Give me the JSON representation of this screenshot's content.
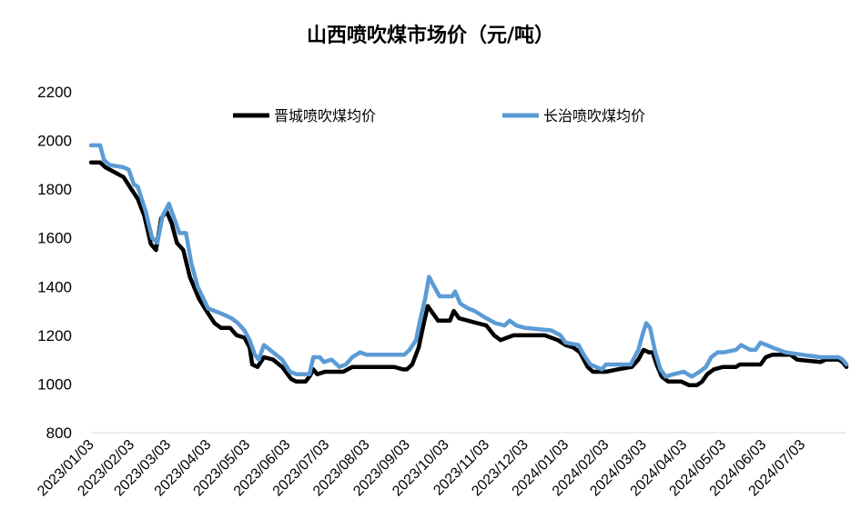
{
  "chart_data": {
    "type": "line",
    "title": "山西喷吹煤市场价（元/吨）",
    "ylim": [
      800,
      2200
    ],
    "yticks": [
      "2200",
      "2000",
      "1800",
      "1600",
      "1400",
      "1200",
      "1000",
      "800"
    ],
    "grid": false,
    "legend_position": "top",
    "x_start": "2023-01-03",
    "x_end": "2024-08-06",
    "xtick_labels": [
      "2023/01/03",
      "2023/02/03",
      "2023/03/03",
      "2023/04/03",
      "2023/05/03",
      "2023/06/03",
      "2023/07/03",
      "2023/08/03",
      "2023/09/03",
      "2023/10/03",
      "2023/11/03",
      "2023/12/03",
      "2024/01/03",
      "2024/02/03",
      "2024/03/03",
      "2024/04/03",
      "2024/05/03",
      "2024/06/03",
      "2024/07/03"
    ],
    "series": [
      {
        "name": "晋城喷吹煤均价",
        "color": "#000000",
        "points": [
          [
            "2023-01-03",
            1910
          ],
          [
            "2023-01-10",
            1910
          ],
          [
            "2023-01-14",
            1890
          ],
          [
            "2023-01-21",
            1870
          ],
          [
            "2023-01-28",
            1850
          ],
          [
            "2023-02-03",
            1800
          ],
          [
            "2023-02-08",
            1760
          ],
          [
            "2023-02-13",
            1690
          ],
          [
            "2023-02-18",
            1575
          ],
          [
            "2023-02-22",
            1550
          ],
          [
            "2023-02-26",
            1680
          ],
          [
            "2023-03-02",
            1710
          ],
          [
            "2023-03-06",
            1660
          ],
          [
            "2023-03-10",
            1580
          ],
          [
            "2023-03-15",
            1550
          ],
          [
            "2023-03-20",
            1440
          ],
          [
            "2023-03-27",
            1350
          ],
          [
            "2023-04-03",
            1290
          ],
          [
            "2023-04-08",
            1250
          ],
          [
            "2023-04-13",
            1230
          ],
          [
            "2023-04-20",
            1230
          ],
          [
            "2023-04-25",
            1200
          ],
          [
            "2023-05-01",
            1190
          ],
          [
            "2023-05-05",
            1150
          ],
          [
            "2023-05-07",
            1080
          ],
          [
            "2023-05-11",
            1070
          ],
          [
            "2023-05-16",
            1110
          ],
          [
            "2023-05-23",
            1100
          ],
          [
            "2023-05-30",
            1070
          ],
          [
            "2023-06-06",
            1020
          ],
          [
            "2023-06-10",
            1010
          ],
          [
            "2023-06-17",
            1010
          ],
          [
            "2023-06-20",
            1030
          ],
          [
            "2023-06-23",
            1060
          ],
          [
            "2023-06-26",
            1040
          ],
          [
            "2023-07-02",
            1050
          ],
          [
            "2023-07-10",
            1050
          ],
          [
            "2023-07-16",
            1050
          ],
          [
            "2023-07-23",
            1070
          ],
          [
            "2023-08-03",
            1070
          ],
          [
            "2023-08-10",
            1070
          ],
          [
            "2023-08-24",
            1070
          ],
          [
            "2023-08-31",
            1060
          ],
          [
            "2023-09-03",
            1060
          ],
          [
            "2023-09-07",
            1080
          ],
          [
            "2023-09-12",
            1150
          ],
          [
            "2023-09-16",
            1250
          ],
          [
            "2023-09-19",
            1320
          ],
          [
            "2023-09-23",
            1290
          ],
          [
            "2023-09-27",
            1260
          ],
          [
            "2023-10-06",
            1260
          ],
          [
            "2023-10-09",
            1300
          ],
          [
            "2023-10-13",
            1270
          ],
          [
            "2023-10-20",
            1260
          ],
          [
            "2023-10-27",
            1250
          ],
          [
            "2023-11-03",
            1240
          ],
          [
            "2023-11-09",
            1200
          ],
          [
            "2023-11-14",
            1180
          ],
          [
            "2023-11-19",
            1190
          ],
          [
            "2023-11-24",
            1200
          ],
          [
            "2023-12-03",
            1200
          ],
          [
            "2023-12-18",
            1200
          ],
          [
            "2023-12-28",
            1180
          ],
          [
            "2024-01-03",
            1160
          ],
          [
            "2024-01-09",
            1150
          ],
          [
            "2024-01-14",
            1130
          ],
          [
            "2024-01-20",
            1070
          ],
          [
            "2024-01-24",
            1050
          ],
          [
            "2024-02-03",
            1050
          ],
          [
            "2024-02-12",
            1060
          ],
          [
            "2024-02-23",
            1070
          ],
          [
            "2024-02-28",
            1100
          ],
          [
            "2024-03-03",
            1140
          ],
          [
            "2024-03-07",
            1130
          ],
          [
            "2024-03-10",
            1130
          ],
          [
            "2024-03-13",
            1080
          ],
          [
            "2024-03-17",
            1030
          ],
          [
            "2024-03-22",
            1010
          ],
          [
            "2024-04-01",
            1010
          ],
          [
            "2024-04-07",
            995
          ],
          [
            "2024-04-13",
            995
          ],
          [
            "2024-04-17",
            1010
          ],
          [
            "2024-04-21",
            1040
          ],
          [
            "2024-04-26",
            1060
          ],
          [
            "2024-05-03",
            1070
          ],
          [
            "2024-05-13",
            1070
          ],
          [
            "2024-05-16",
            1080
          ],
          [
            "2024-05-23",
            1080
          ],
          [
            "2024-06-01",
            1080
          ],
          [
            "2024-06-05",
            1110
          ],
          [
            "2024-06-10",
            1120
          ],
          [
            "2024-06-24",
            1120
          ],
          [
            "2024-06-29",
            1100
          ],
          [
            "2024-07-17",
            1090
          ],
          [
            "2024-07-21",
            1100
          ],
          [
            "2024-07-31",
            1100
          ],
          [
            "2024-08-03",
            1090
          ],
          [
            "2024-08-06",
            1070
          ]
        ]
      },
      {
        "name": "长治喷吹煤均价",
        "color": "#5b9bd5",
        "points": [
          [
            "2023-01-03",
            1980
          ],
          [
            "2023-01-10",
            1980
          ],
          [
            "2023-01-13",
            1920
          ],
          [
            "2023-01-17",
            1900
          ],
          [
            "2023-01-28",
            1890
          ],
          [
            "2023-02-01",
            1880
          ],
          [
            "2023-02-05",
            1820
          ],
          [
            "2023-02-08",
            1810
          ],
          [
            "2023-02-14",
            1710
          ],
          [
            "2023-02-19",
            1600
          ],
          [
            "2023-02-23",
            1580
          ],
          [
            "2023-02-27",
            1690
          ],
          [
            "2023-03-02",
            1720
          ],
          [
            "2023-03-04",
            1740
          ],
          [
            "2023-03-08",
            1680
          ],
          [
            "2023-03-12",
            1620
          ],
          [
            "2023-03-17",
            1620
          ],
          [
            "2023-03-21",
            1500
          ],
          [
            "2023-03-26",
            1400
          ],
          [
            "2023-04-03",
            1310
          ],
          [
            "2023-04-08",
            1300
          ],
          [
            "2023-04-13",
            1290
          ],
          [
            "2023-04-21",
            1270
          ],
          [
            "2023-04-26",
            1250
          ],
          [
            "2023-05-01",
            1220
          ],
          [
            "2023-05-05",
            1180
          ],
          [
            "2023-05-09",
            1120
          ],
          [
            "2023-05-12",
            1100
          ],
          [
            "2023-05-16",
            1160
          ],
          [
            "2023-05-23",
            1130
          ],
          [
            "2023-05-30",
            1100
          ],
          [
            "2023-06-05",
            1050
          ],
          [
            "2023-06-10",
            1040
          ],
          [
            "2023-06-20",
            1040
          ],
          [
            "2023-06-23",
            1110
          ],
          [
            "2023-06-28",
            1110
          ],
          [
            "2023-07-01",
            1090
          ],
          [
            "2023-07-07",
            1100
          ],
          [
            "2023-07-13",
            1070
          ],
          [
            "2023-07-18",
            1080
          ],
          [
            "2023-07-23",
            1110
          ],
          [
            "2023-07-29",
            1130
          ],
          [
            "2023-08-03",
            1120
          ],
          [
            "2023-08-14",
            1120
          ],
          [
            "2023-08-24",
            1120
          ],
          [
            "2023-09-01",
            1120
          ],
          [
            "2023-09-05",
            1140
          ],
          [
            "2023-09-10",
            1180
          ],
          [
            "2023-09-13",
            1260
          ],
          [
            "2023-09-17",
            1350
          ],
          [
            "2023-09-20",
            1440
          ],
          [
            "2023-09-24",
            1400
          ],
          [
            "2023-09-28",
            1360
          ],
          [
            "2023-10-08",
            1360
          ],
          [
            "2023-10-10",
            1380
          ],
          [
            "2023-10-14",
            1330
          ],
          [
            "2023-10-20",
            1310
          ],
          [
            "2023-10-25",
            1300
          ],
          [
            "2023-11-03",
            1270
          ],
          [
            "2023-11-10",
            1250
          ],
          [
            "2023-11-17",
            1240
          ],
          [
            "2023-11-21",
            1260
          ],
          [
            "2023-11-26",
            1240
          ],
          [
            "2023-12-03",
            1230
          ],
          [
            "2023-12-23",
            1220
          ],
          [
            "2023-12-30",
            1200
          ],
          [
            "2024-01-03",
            1170
          ],
          [
            "2024-01-13",
            1160
          ],
          [
            "2024-01-17",
            1120
          ],
          [
            "2024-01-22",
            1080
          ],
          [
            "2024-01-31",
            1060
          ],
          [
            "2024-02-03",
            1080
          ],
          [
            "2024-02-22",
            1080
          ],
          [
            "2024-02-25",
            1110
          ],
          [
            "2024-02-28",
            1140
          ],
          [
            "2024-03-02",
            1200
          ],
          [
            "2024-03-05",
            1250
          ],
          [
            "2024-03-08",
            1230
          ],
          [
            "2024-03-12",
            1130
          ],
          [
            "2024-03-16",
            1060
          ],
          [
            "2024-03-20",
            1030
          ],
          [
            "2024-03-26",
            1040
          ],
          [
            "2024-04-03",
            1050
          ],
          [
            "2024-04-09",
            1030
          ],
          [
            "2024-04-15",
            1050
          ],
          [
            "2024-04-20",
            1070
          ],
          [
            "2024-04-24",
            1110
          ],
          [
            "2024-04-29",
            1130
          ],
          [
            "2024-05-04",
            1130
          ],
          [
            "2024-05-13",
            1140
          ],
          [
            "2024-05-17",
            1160
          ],
          [
            "2024-05-24",
            1140
          ],
          [
            "2024-05-28",
            1140
          ],
          [
            "2024-06-01",
            1170
          ],
          [
            "2024-06-10",
            1150
          ],
          [
            "2024-06-20",
            1130
          ],
          [
            "2024-07-03",
            1120
          ],
          [
            "2024-07-17",
            1110
          ],
          [
            "2024-07-31",
            1110
          ],
          [
            "2024-08-03",
            1100
          ],
          [
            "2024-08-06",
            1080
          ]
        ]
      }
    ]
  }
}
